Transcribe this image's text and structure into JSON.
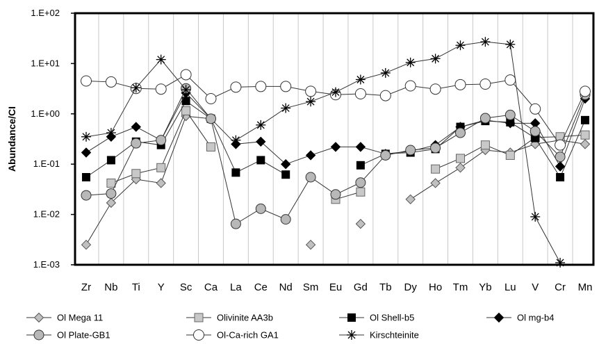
{
  "chart_data": {
    "type": "line",
    "title": "",
    "xlabel": "",
    "ylabel": "Abundance/CI",
    "yscale": "log",
    "ylim": [
      0.001,
      100
    ],
    "yticks": [
      "1.E-03",
      "1.E-02",
      "1.E-01",
      "1.E+00",
      "1.E+01",
      "1.E+02"
    ],
    "grid": "vertical",
    "legend_position": "bottom",
    "categories": [
      "Zr",
      "Nb",
      "Ti",
      "Y",
      "Sc",
      "Ca",
      "La",
      "Ce",
      "Nd",
      "Sm",
      "Eu",
      "Gd",
      "Tb",
      "Dy",
      "Ho",
      "Tm",
      "Yb",
      "Lu",
      "V",
      "Cr",
      "Mn"
    ],
    "series": [
      {
        "name": "Ol Mega 11",
        "marker": "diamond-gray",
        "values": [
          0.0025,
          0.017,
          0.05,
          0.042,
          0.9,
          0.8,
          null,
          null,
          null,
          0.0025,
          null,
          0.0065,
          null,
          0.02,
          0.042,
          0.085,
          0.19,
          0.17,
          0.25,
          0.3,
          0.25
        ]
      },
      {
        "name": "Olivinite AA3b",
        "marker": "square-gray",
        "values": [
          null,
          0.042,
          0.065,
          0.085,
          1.15,
          0.22,
          null,
          null,
          null,
          null,
          0.02,
          0.028,
          null,
          null,
          0.08,
          0.13,
          0.24,
          0.15,
          0.34,
          0.35,
          0.38
        ]
      },
      {
        "name": "Ol Shell-b5",
        "marker": "square-black",
        "values": [
          0.055,
          0.12,
          0.28,
          0.24,
          1.8,
          0.8,
          0.068,
          0.12,
          0.062,
          null,
          null,
          0.095,
          0.16,
          0.17,
          0.2,
          0.55,
          0.72,
          0.68,
          0.33,
          0.055,
          0.75
        ]
      },
      {
        "name": "Ol mg-b4",
        "marker": "diamond-black",
        "values": [
          0.17,
          0.35,
          0.55,
          0.3,
          2.6,
          0.8,
          0.25,
          0.28,
          0.1,
          0.15,
          0.22,
          0.22,
          0.16,
          0.18,
          0.24,
          0.55,
          0.75,
          0.65,
          0.65,
          0.09,
          2.0
        ]
      },
      {
        "name": "Ol Plate-GB1",
        "marker": "circle-gray",
        "values": [
          0.024,
          0.026,
          0.26,
          0.3,
          3.2,
          0.8,
          0.0065,
          0.013,
          0.008,
          0.055,
          0.025,
          0.043,
          0.15,
          0.19,
          0.21,
          0.42,
          0.82,
          0.95,
          0.45,
          0.14,
          2.4
        ]
      },
      {
        "name": "Ol-Ca-rich GA1",
        "marker": "circle-white",
        "values": [
          4.5,
          4.3,
          3.2,
          3.1,
          6.0,
          2.0,
          3.4,
          3.5,
          3.5,
          2.8,
          2.4,
          2.5,
          2.3,
          3.6,
          3.1,
          3.8,
          3.9,
          4.7,
          1.25,
          0.24,
          2.8
        ]
      },
      {
        "name": "Kirschteinite",
        "marker": "star",
        "values": [
          0.35,
          0.42,
          3.3,
          12.0,
          3.0,
          null,
          0.3,
          0.6,
          1.3,
          1.75,
          2.7,
          4.8,
          6.5,
          10.5,
          12.5,
          23.0,
          27.0,
          24.0,
          0.009,
          0.0011,
          null
        ]
      }
    ]
  }
}
